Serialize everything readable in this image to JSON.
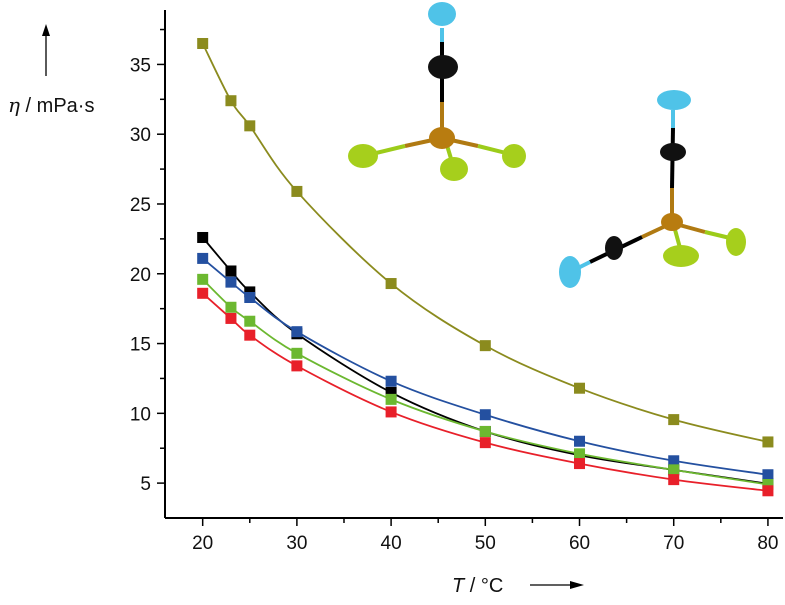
{
  "chart_data": {
    "type": "line",
    "title": "",
    "xlabel_symbol": "T",
    "xlabel_unit": " / °C",
    "ylabel_symbol": "η",
    "ylabel_unit": " / mPa·s",
    "xlim": [
      16,
      81.6
    ],
    "ylim": [
      2.5,
      38.9
    ],
    "xticks": [
      20,
      30,
      40,
      50,
      60,
      70,
      80
    ],
    "yticks": [
      5,
      10,
      15,
      20,
      25,
      30,
      35
    ],
    "grid": false,
    "x": [
      20,
      23,
      25,
      30,
      40,
      50,
      60,
      70,
      80
    ],
    "series": [
      {
        "name": "olive",
        "color": "#8b8b1e",
        "values": [
          36.5,
          32.4,
          30.6,
          25.9,
          19.3,
          14.85,
          11.8,
          9.55,
          7.95
        ]
      },
      {
        "name": "black",
        "color": "#000000",
        "values": [
          22.6,
          20.2,
          18.7,
          15.7,
          11.5,
          8.7,
          7.0,
          5.95,
          4.95
        ]
      },
      {
        "name": "blue",
        "color": "#2450a0",
        "values": [
          21.1,
          19.4,
          18.3,
          15.85,
          12.3,
          9.9,
          8.0,
          6.6,
          5.6
        ]
      },
      {
        "name": "green",
        "color": "#6cb830",
        "values": [
          19.6,
          17.6,
          16.6,
          14.3,
          11.0,
          8.7,
          7.1,
          5.95,
          4.9
        ]
      },
      {
        "name": "red",
        "color": "#e8202a",
        "values": [
          18.6,
          16.8,
          15.6,
          13.4,
          10.1,
          7.9,
          6.4,
          5.25,
          4.45
        ]
      }
    ]
  }
}
